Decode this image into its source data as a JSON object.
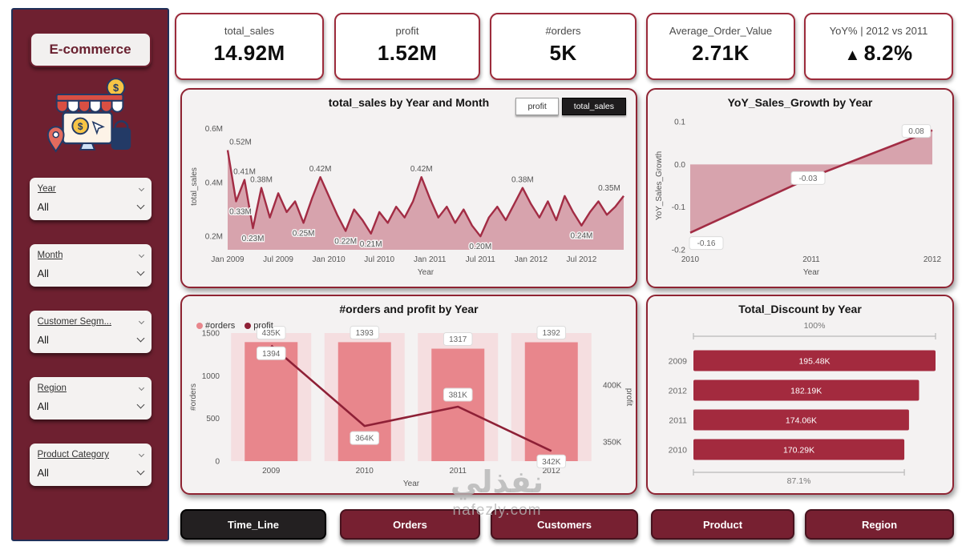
{
  "colors": {
    "sidebar": "#6e2030",
    "sidebar_border": "#203059",
    "accent": "#a22c44",
    "line_dark": "#8e2036",
    "area_fill": "#cf8e9b",
    "bar": "#e8868c",
    "bar_bg": "#f5d7da",
    "hbar": "#a32a3e",
    "panel_bg": "#f4f2f2",
    "panel_border": "#8f2433",
    "nav": "#772031",
    "nav_active": "#232021",
    "card_border": "#9c2b3b"
  },
  "sidebar": {
    "title": "E-commerce",
    "filters": [
      {
        "label": "Year",
        "value": "All"
      },
      {
        "label": "Month",
        "value": "All"
      },
      {
        "label": "Customer Segm...",
        "value": "All"
      },
      {
        "label": "Region",
        "value": "All"
      },
      {
        "label": "Product Category",
        "value": "All"
      }
    ]
  },
  "kpis": [
    {
      "label": "total_sales",
      "value": "14.92M"
    },
    {
      "label": "profit",
      "value": "1.52M"
    },
    {
      "label": "#orders",
      "value": "5K"
    },
    {
      "label": "Average_Order_Value",
      "value": "2.71K"
    },
    {
      "label": "YoY% | 2012 vs 2011",
      "delta": "▲",
      "value": "8.2%"
    }
  ],
  "nav": [
    {
      "label": "Time_Line",
      "active": true
    },
    {
      "label": "Orders",
      "active": false
    },
    {
      "label": "Customers",
      "active": false
    },
    {
      "label": "Product",
      "active": false
    },
    {
      "label": "Region",
      "active": false
    }
  ],
  "watermark": {
    "arabic": "نفذلي",
    "domain": "nafezly.com"
  },
  "chart_data": [
    {
      "id": "sales-by-month",
      "type": "area",
      "title": "total_sales by Year and Month",
      "xlabel": "Year",
      "ylabel": "total_sales",
      "x_ticks": [
        "Jan 2009",
        "Jul 2009",
        "Jan 2010",
        "Jul 2010",
        "Jan 2011",
        "Jul 2011",
        "Jan 2012",
        "Jul 2012"
      ],
      "x_tick_indices": [
        0,
        6,
        12,
        18,
        24,
        30,
        36,
        42
      ],
      "y_ticks": [
        0.2,
        0.4,
        0.6
      ],
      "y_tick_labels": [
        "0.2M",
        "0.4M",
        "0.6M"
      ],
      "ylim": [
        0.15,
        0.62
      ],
      "values": [
        0.52,
        0.33,
        0.41,
        0.23,
        0.38,
        0.27,
        0.36,
        0.29,
        0.33,
        0.25,
        0.34,
        0.42,
        0.35,
        0.28,
        0.22,
        0.3,
        0.26,
        0.21,
        0.29,
        0.25,
        0.31,
        0.27,
        0.33,
        0.42,
        0.34,
        0.27,
        0.31,
        0.25,
        0.3,
        0.24,
        0.2,
        0.27,
        0.31,
        0.26,
        0.32,
        0.38,
        0.32,
        0.27,
        0.33,
        0.26,
        0.35,
        0.29,
        0.24,
        0.29,
        0.33,
        0.28,
        0.31,
        0.35
      ],
      "point_labels": [
        {
          "i": 0,
          "t": "0.52M"
        },
        {
          "i": 1,
          "t": "0.33M"
        },
        {
          "i": 2,
          "t": "0.41M"
        },
        {
          "i": 3,
          "t": "0.23M"
        },
        {
          "i": 4,
          "t": "0.38M"
        },
        {
          "i": 9,
          "t": "0.25M"
        },
        {
          "i": 11,
          "t": "0.42M"
        },
        {
          "i": 14,
          "t": "0.22M"
        },
        {
          "i": 17,
          "t": "0.21M"
        },
        {
          "i": 23,
          "t": "0.42M"
        },
        {
          "i": 30,
          "t": "0.20M"
        },
        {
          "i": 35,
          "t": "0.38M"
        },
        {
          "i": 42,
          "t": "0.24M"
        },
        {
          "i": 47,
          "t": "0.35M"
        }
      ],
      "toggles": [
        {
          "label": "profit",
          "active": false
        },
        {
          "label": "total_sales",
          "active": true
        }
      ]
    },
    {
      "id": "yoy-growth",
      "type": "line",
      "title": "YoY_Sales_Growth by Year",
      "xlabel": "Year",
      "ylabel": "YoY_Sales_Growth",
      "x": [
        2010,
        2011,
        2012
      ],
      "values": [
        -0.16,
        -0.03,
        0.08
      ],
      "labels": [
        "-0.16",
        "-0.03",
        "0.08"
      ],
      "y_ticks": [
        0.1,
        0.0,
        -0.1,
        -0.2
      ],
      "y_tick_labels": [
        "0.1",
        "0.0",
        "-0.1",
        "-0.2"
      ],
      "ylim": [
        -0.2,
        0.1
      ]
    },
    {
      "id": "orders-profit",
      "type": "combo",
      "title": "#orders and profit by Year",
      "xlabel": "Year",
      "ylabel_left": "#orders",
      "ylabel_right": "profit",
      "categories": [
        "2009",
        "2010",
        "2011",
        "2012"
      ],
      "bars": {
        "name": "#orders",
        "values": [
          1394,
          1393,
          1317,
          1392
        ],
        "labels": [
          "1394",
          "1393",
          "1317",
          "1392"
        ]
      },
      "line": {
        "name": "profit",
        "values": [
          435000,
          364000,
          381000,
          342000
        ],
        "labels": [
          "435K",
          "364K",
          "381K",
          "342K"
        ]
      },
      "left_ticks": [
        0,
        500,
        1000,
        1500
      ],
      "left_lim": [
        0,
        1500
      ],
      "right_ticks": [
        350000,
        400000
      ],
      "right_tick_labels": [
        "350K",
        "400K"
      ],
      "right_lim": [
        333000,
        446000
      ]
    },
    {
      "id": "discount",
      "type": "hbar",
      "title": "Total_Discount by Year",
      "categories": [
        "2009",
        "2012",
        "2011",
        "2010"
      ],
      "values": [
        195480,
        182190,
        174060,
        170290
      ],
      "labels": [
        "195.48K",
        "182.19K",
        "174.06K",
        "170.29K"
      ],
      "max_label": "100%",
      "min_label": "87.1%"
    }
  ]
}
